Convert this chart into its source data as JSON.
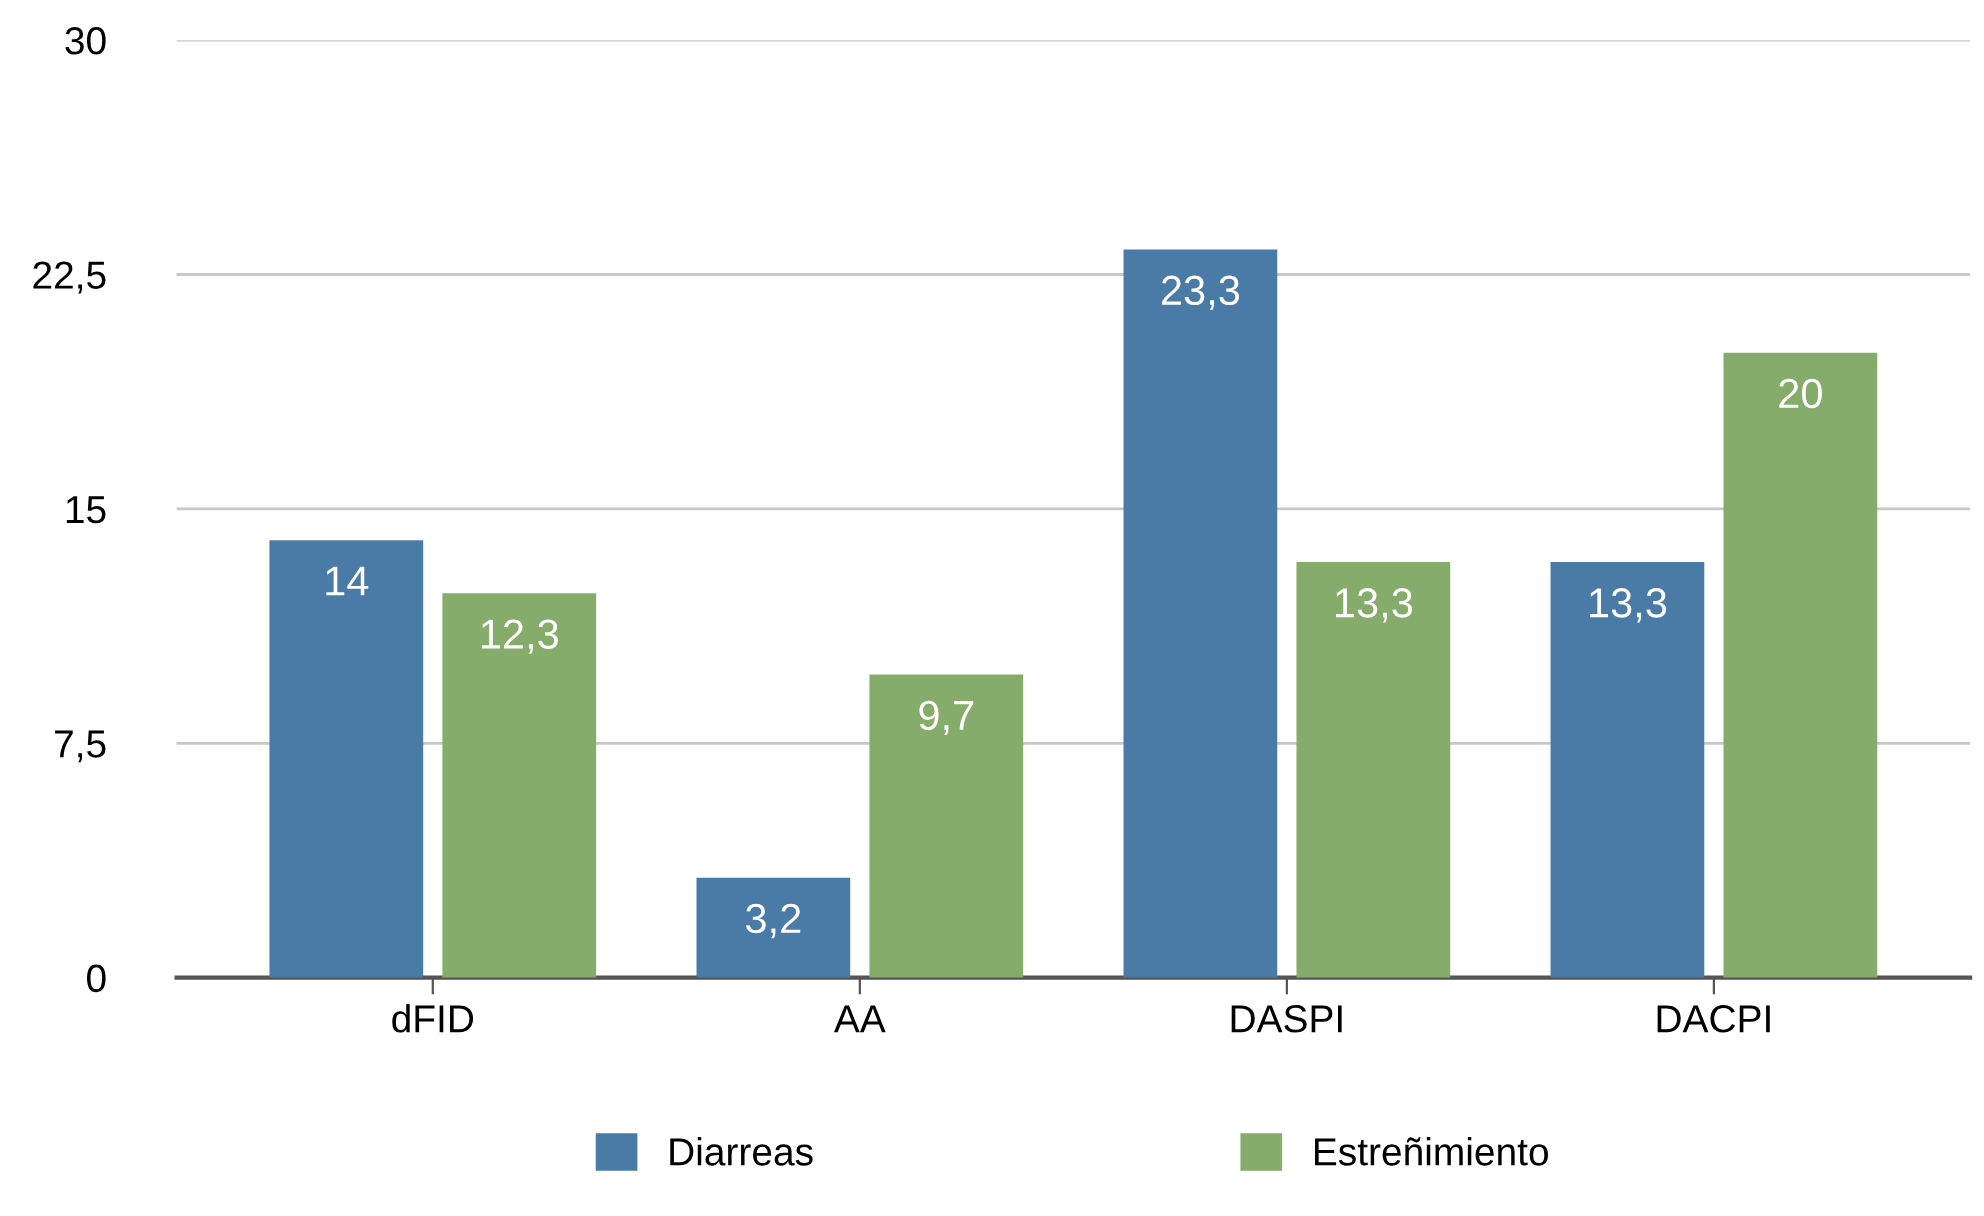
{
  "chart_data": {
    "type": "bar",
    "categories": [
      "dFID",
      "AA",
      "DASPI",
      "DACPI"
    ],
    "series": [
      {
        "name": "Diarreas",
        "color": "#4a7ba7",
        "values": [
          14,
          3.2,
          23.3,
          13.3
        ],
        "value_labels": [
          "14",
          "3,2",
          "23,3",
          "13,3"
        ]
      },
      {
        "name": "Estreñimiento",
        "color": "#85ac6a",
        "values": [
          12.3,
          9.7,
          13.3,
          20
        ],
        "value_labels": [
          "12,3",
          "9,7",
          "13,3",
          "20"
        ]
      }
    ],
    "ylim": [
      0,
      30
    ],
    "yticks": [
      0,
      {
        "value": 7.5,
        "label": "7,5"
      },
      15,
      {
        "value": 22.5,
        "label": "22,5"
      },
      30
    ],
    "grid": "y",
    "legend": "bottom"
  }
}
